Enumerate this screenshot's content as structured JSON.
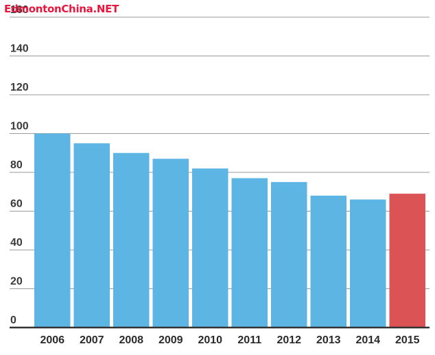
{
  "watermark": {
    "text": "EdmontonChina.NET"
  },
  "chart_data": {
    "type": "bar",
    "categories": [
      "2006",
      "2007",
      "2008",
      "2009",
      "2010",
      "2011",
      "2012",
      "2013",
      "2014",
      "2015"
    ],
    "values": [
      100,
      95,
      90,
      87,
      82,
      77,
      75,
      68,
      66,
      69
    ],
    "colors": [
      "#5db5e3",
      "#5db5e3",
      "#5db5e3",
      "#5db5e3",
      "#5db5e3",
      "#5db5e3",
      "#5db5e3",
      "#5db5e3",
      "#5db5e3",
      "#dc5355"
    ],
    "yticks": [
      "0",
      "20",
      "40",
      "60",
      "80",
      "100",
      "120",
      "140",
      "160"
    ],
    "ylim": [
      0,
      160
    ],
    "grid": true,
    "title": "",
    "xlabel": "",
    "ylabel": ""
  }
}
